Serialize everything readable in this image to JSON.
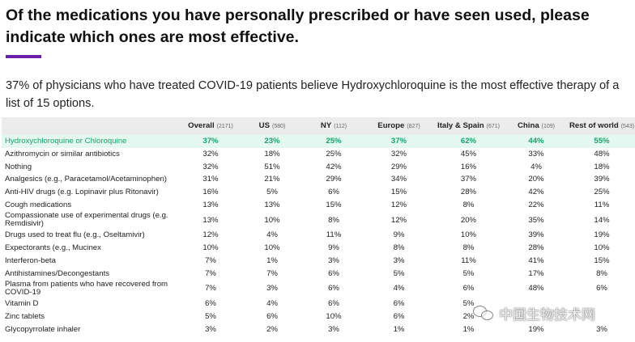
{
  "header": {
    "title": "Of the medications you have personally prescribed or have seen used, please indicate which ones are most effective.",
    "accent_color": "#6a1fa8"
  },
  "subtitle": "37% of physicians who have treated COVID-19 patients believe Hydroxychloroquine is the most effective therapy of a list of 15 options.",
  "table": {
    "columns": [
      {
        "label": "Overall",
        "n": "(2171)"
      },
      {
        "label": "US",
        "n": "(580)"
      },
      {
        "label": "NY",
        "n": "(112)"
      },
      {
        "label": "Europe",
        "n": "(827)"
      },
      {
        "label": "Italy & Spain",
        "n": "(671)"
      },
      {
        "label": "China",
        "n": "(109)"
      },
      {
        "label": "Rest of world",
        "n": "(543)"
      }
    ],
    "rows": [
      {
        "label": "Hydroxychloroquine or Chloroquine",
        "values": [
          "37%",
          "23%",
          "25%",
          "37%",
          "62%",
          "44%",
          "55%"
        ]
      },
      {
        "label": "Azithromycin or similar antibiotics",
        "values": [
          "32%",
          "18%",
          "25%",
          "32%",
          "45%",
          "33%",
          "48%"
        ]
      },
      {
        "label": "Nothing",
        "values": [
          "32%",
          "51%",
          "42%",
          "29%",
          "16%",
          "4%",
          "18%"
        ]
      },
      {
        "label": "Analgesics (e.g., Paracetamol/Acetaminophen)",
        "values": [
          "31%",
          "21%",
          "29%",
          "34%",
          "37%",
          "20%",
          "39%"
        ]
      },
      {
        "label": "Anti-HIV drugs (e.g. Lopinavir plus Ritonavir)",
        "values": [
          "16%",
          "5%",
          "6%",
          "15%",
          "28%",
          "42%",
          "25%"
        ]
      },
      {
        "label": "Cough medications",
        "values": [
          "13%",
          "13%",
          "15%",
          "12%",
          "8%",
          "22%",
          "11%"
        ]
      },
      {
        "label": "Compassionate use of experimental drugs (e.g. Remdisivir)",
        "values": [
          "13%",
          "10%",
          "8%",
          "12%",
          "20%",
          "35%",
          "14%"
        ]
      },
      {
        "label": "Drugs used to treat flu (e.g., Oseltamivir)",
        "values": [
          "12%",
          "4%",
          "11%",
          "9%",
          "10%",
          "39%",
          "19%"
        ]
      },
      {
        "label": "Expectorants (e.g., Mucinex",
        "values": [
          "10%",
          "10%",
          "9%",
          "8%",
          "8%",
          "28%",
          "10%"
        ]
      },
      {
        "label": "Interferon-beta",
        "values": [
          "7%",
          "1%",
          "3%",
          "3%",
          "11%",
          "41%",
          "15%"
        ]
      },
      {
        "label": "Antihistamines/Decongestants",
        "values": [
          "7%",
          "7%",
          "6%",
          "5%",
          "5%",
          "17%",
          "8%"
        ]
      },
      {
        "label": "Plasma from patients who have recovered from COVID-19",
        "values": [
          "7%",
          "3%",
          "6%",
          "4%",
          "6%",
          "48%",
          "6%"
        ]
      },
      {
        "label": "Vitamin D",
        "values": [
          "6%",
          "4%",
          "6%",
          "6%",
          "5%",
          "",
          ""
        ]
      },
      {
        "label": "Zinc tablets",
        "values": [
          "5%",
          "6%",
          "10%",
          "6%",
          "2%",
          "",
          ""
        ]
      },
      {
        "label": "Glycopyrrolate inhaler",
        "values": [
          "3%",
          "2%",
          "3%",
          "1%",
          "1%",
          "19%",
          "3%"
        ]
      }
    ],
    "highlight_color": "#18a36b"
  },
  "watermark": {
    "text": "中国生物技术网",
    "icon": "wechat-icon"
  }
}
